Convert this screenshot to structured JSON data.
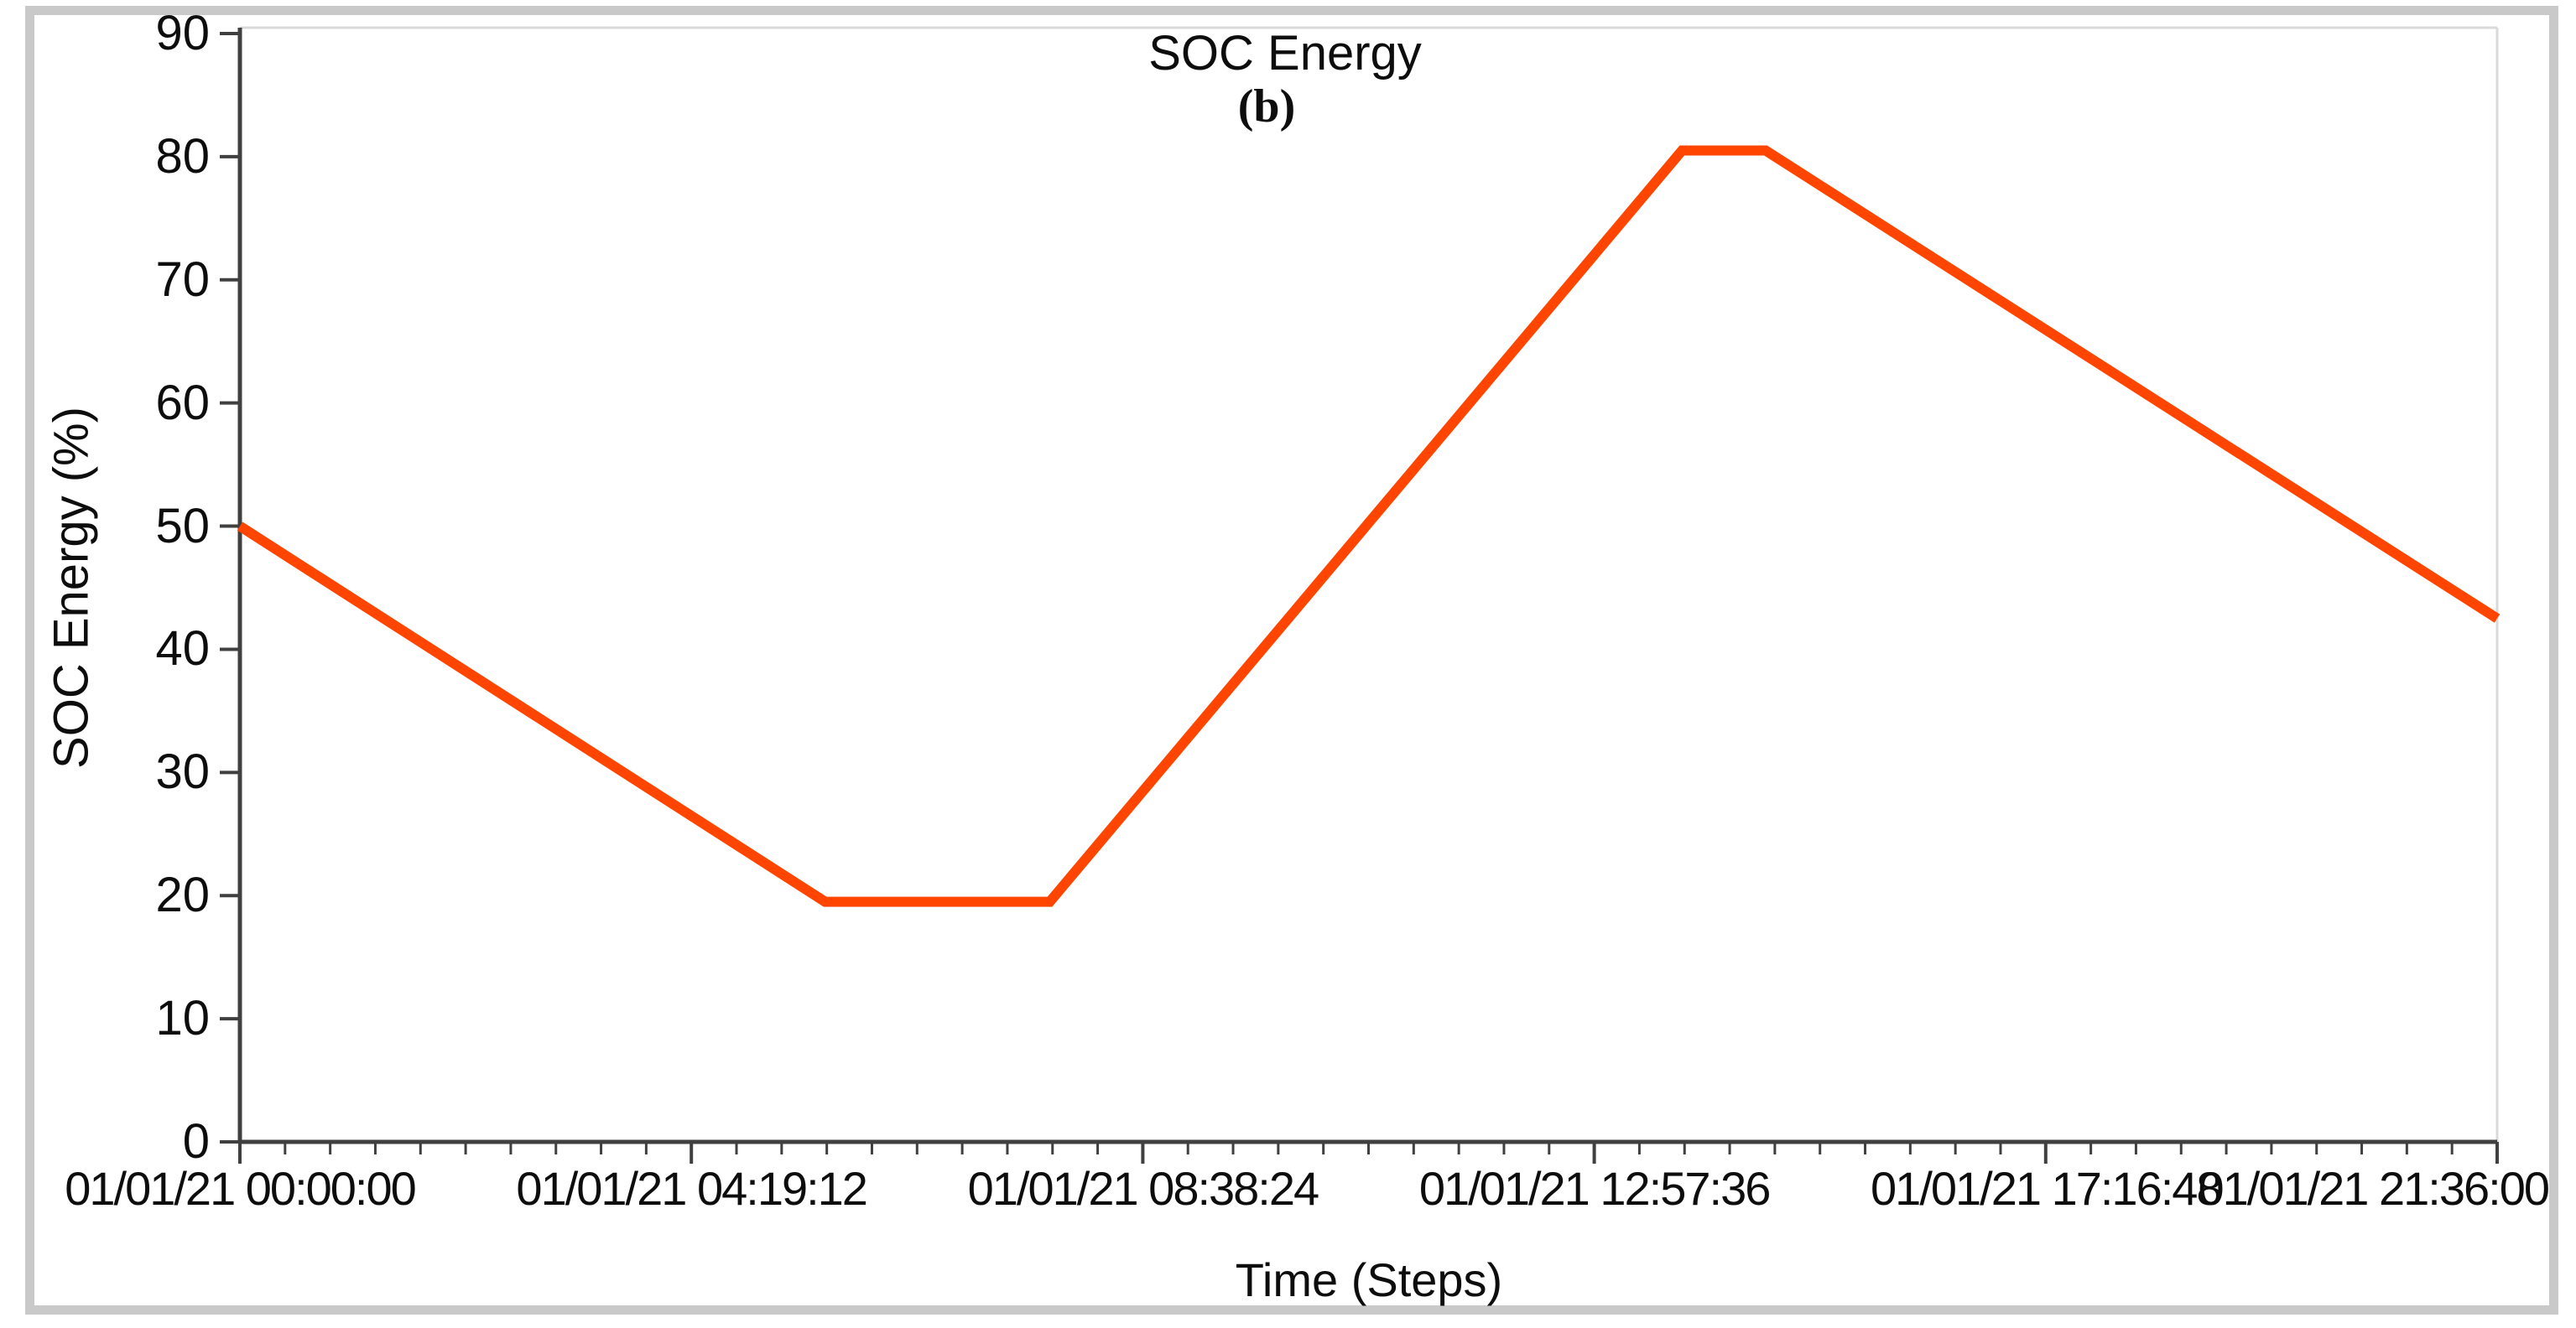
{
  "chart_data": {
    "type": "line",
    "title": "SOC Energy",
    "subtitle": "(b)",
    "xlabel": "Time (Steps)",
    "ylabel": "SOC Energy (%)",
    "ylim": [
      0,
      90
    ],
    "y_ticks": [
      0,
      10,
      20,
      30,
      40,
      50,
      60,
      70,
      80,
      90
    ],
    "xlim_hours": [
      0,
      21.6
    ],
    "x_ticks": [
      {
        "hours": 0,
        "label": "01/01/21 00:00:00"
      },
      {
        "hours": 4.32,
        "label": "01/01/21 04:19:12"
      },
      {
        "hours": 8.64,
        "label": "01/01/21 08:38:24"
      },
      {
        "hours": 12.96,
        "label": "01/01/21 12:57:36"
      },
      {
        "hours": 17.28,
        "label": "01/01/21 17:16:48"
      },
      {
        "hours": 21.6,
        "label": "01/01/21 21:36:00"
      }
    ],
    "minor_tick_divisions": 10,
    "grid": false,
    "legend": false,
    "series": [
      {
        "name": "SOC Energy",
        "color": "#FF4500",
        "points": [
          {
            "hours": 0.0,
            "value": 50.0
          },
          {
            "hours": 5.6,
            "value": 19.5
          },
          {
            "hours": 7.75,
            "value": 19.5
          },
          {
            "hours": 13.8,
            "value": 80.5
          },
          {
            "hours": 14.6,
            "value": 80.5
          },
          {
            "hours": 21.6,
            "value": 42.5
          }
        ]
      }
    ]
  },
  "colors": {
    "line": "#FF4500",
    "axis": "#404040",
    "tick": "#404040",
    "plot_border": "#d9d9d9",
    "window_frame": "#c9c9c9",
    "background": "#ffffff",
    "text": "#0d0d0d"
  }
}
